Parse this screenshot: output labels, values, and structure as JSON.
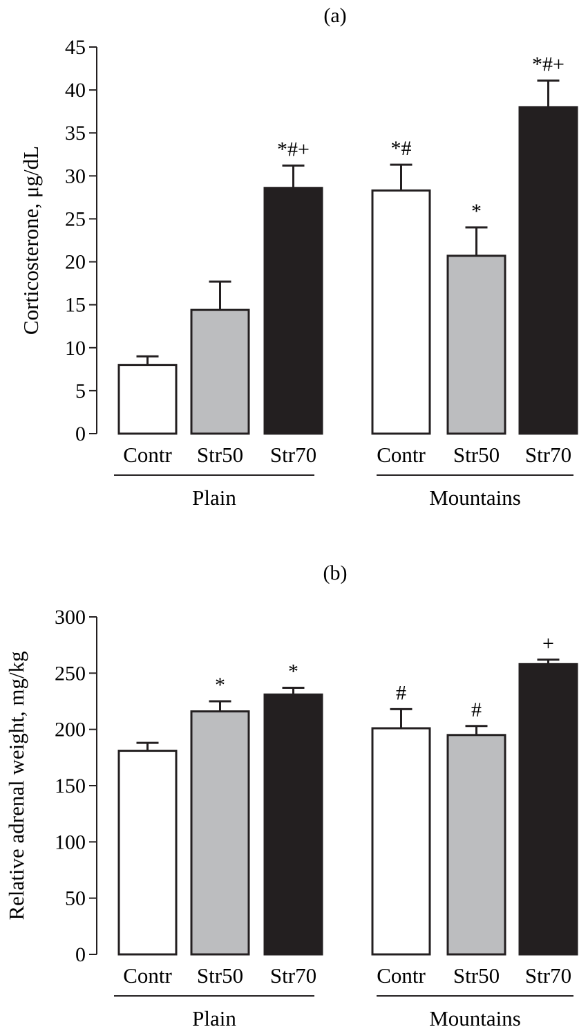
{
  "colors": {
    "contr": "#ffffff",
    "str50": "#bcbdbf",
    "str70": "#231f20",
    "stroke": "#231f20"
  },
  "chart_data": [
    {
      "type": "bar",
      "panel_label": "(a)",
      "ylabel": "Corticosterone, μg/dL",
      "ylim": [
        0,
        45
      ],
      "yticks": [
        0,
        5,
        10,
        15,
        20,
        25,
        30,
        35,
        40,
        45
      ],
      "groups": [
        "Plain",
        "Mountains"
      ],
      "categories": [
        "Contr",
        "Str50",
        "Str70"
      ],
      "series": [
        {
          "name": "Plain",
          "values": [
            8.0,
            14.4,
            28.6
          ],
          "errors": [
            1.0,
            3.3,
            2.6
          ],
          "annotations": [
            "",
            "",
            "*#+"
          ]
        },
        {
          "name": "Mountains",
          "values": [
            28.3,
            20.7,
            38.0
          ],
          "errors": [
            3.0,
            3.3,
            3.1
          ],
          "annotations": [
            "*#",
            "*",
            "*#+"
          ]
        }
      ]
    },
    {
      "type": "bar",
      "panel_label": "(b)",
      "ylabel": "Relative adrenal weight, mg/kg",
      "ylim": [
        0,
        300
      ],
      "yticks": [
        0,
        50,
        100,
        150,
        200,
        250,
        300
      ],
      "groups": [
        "Plain",
        "Mountains"
      ],
      "categories": [
        "Contr",
        "Str50",
        "Str70"
      ],
      "series": [
        {
          "name": "Plain",
          "values": [
            181,
            216,
            231
          ],
          "errors": [
            7,
            9,
            6
          ],
          "annotations": [
            "",
            "*",
            "*"
          ]
        },
        {
          "name": "Mountains",
          "values": [
            201,
            195,
            258
          ],
          "errors": [
            17,
            8,
            4
          ],
          "annotations": [
            "#",
            "#",
            "+"
          ]
        }
      ]
    }
  ]
}
